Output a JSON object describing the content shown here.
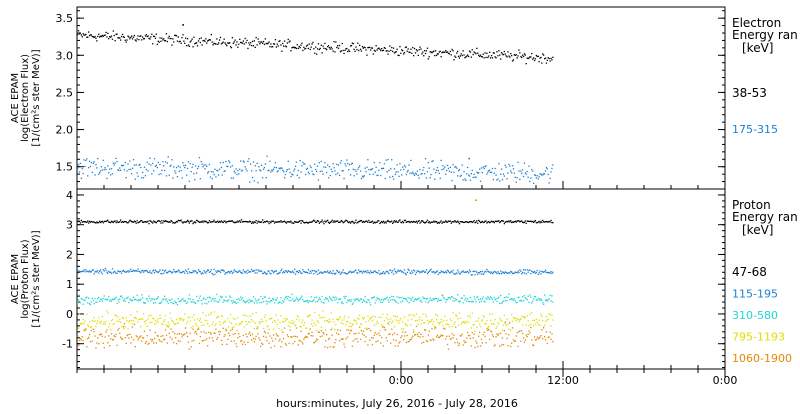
{
  "xaxis": {
    "label": "hours:minutes, July 26, 2016 - July 28, 2016",
    "range_hours": [
      -24,
      24
    ],
    "major_ticks": [
      {
        "t": 0,
        "label": "0:00"
      },
      {
        "t": 12,
        "label": "12:00"
      },
      {
        "t": 24,
        "label": "0:00"
      }
    ],
    "minor_step_hours": 2,
    "data_end_hours": 11.2
  },
  "chart_data": [
    {
      "type": "scatter",
      "panel": "electron",
      "ylabel": [
        "ACE EPAM",
        "log(Electron Flux)",
        "[1/(cm²s ster MeV)]"
      ],
      "ylim": [
        1.2,
        3.65
      ],
      "yticks": [
        1.5,
        2.0,
        2.5,
        3.0,
        3.5
      ],
      "ytick_labels": [
        "1.5",
        "2.0",
        "2.5",
        "3.0",
        "3.5"
      ],
      "minor_step": 0.1,
      "legend_title": [
        "Electron",
        "Energy ran",
        "[keV]"
      ],
      "series": [
        {
          "name": "38-53",
          "color": "#000000",
          "y_start": 3.28,
          "y_end": 2.97,
          "scatter": 0.035,
          "outliers": [
            [
              -16.2,
              3.42
            ]
          ]
        },
        {
          "name": "175-315",
          "color": "#1e7fd0",
          "y_start": 1.5,
          "y_end": 1.42,
          "scatter": 0.07,
          "outliers": [
            [
              5.0,
              1.62
            ]
          ]
        }
      ]
    },
    {
      "type": "scatter",
      "panel": "proton",
      "ylabel": [
        "ACE EPAM",
        "log(Proton Flux)",
        "[1/(cm²s ster MeV)]"
      ],
      "ylim": [
        -1.85,
        4.2
      ],
      "yticks": [
        -1,
        0,
        1,
        2,
        3,
        4
      ],
      "ytick_labels": [
        "-1",
        "0",
        "1",
        "2",
        "3",
        "4"
      ],
      "minor_step": 0.2,
      "legend_title": [
        "Proton",
        "Energy ran",
        "[keV]"
      ],
      "series": [
        {
          "name": "47-68",
          "color": "#000000",
          "y_start": 3.12,
          "y_end": 3.12,
          "scatter": 0.025,
          "outliers": []
        },
        {
          "name": "115-195",
          "color": "#1e7fd0",
          "y_start": 1.45,
          "y_end": 1.42,
          "scatter": 0.04,
          "outliers": []
        },
        {
          "name": "310-580",
          "color": "#22d3d3",
          "y_start": 0.5,
          "y_end": 0.5,
          "scatter": 0.07,
          "outliers": []
        },
        {
          "name": "795-1193",
          "color": "#dede00",
          "y_start": -0.22,
          "y_end": -0.22,
          "scatter": 0.14,
          "outliers": []
        },
        {
          "name": "1060-1900",
          "color": "#e08a00",
          "y_start": -0.75,
          "y_end": -0.75,
          "scatter": 0.18,
          "outliers": [
            [
              5.5,
              3.85
            ]
          ]
        }
      ]
    }
  ]
}
